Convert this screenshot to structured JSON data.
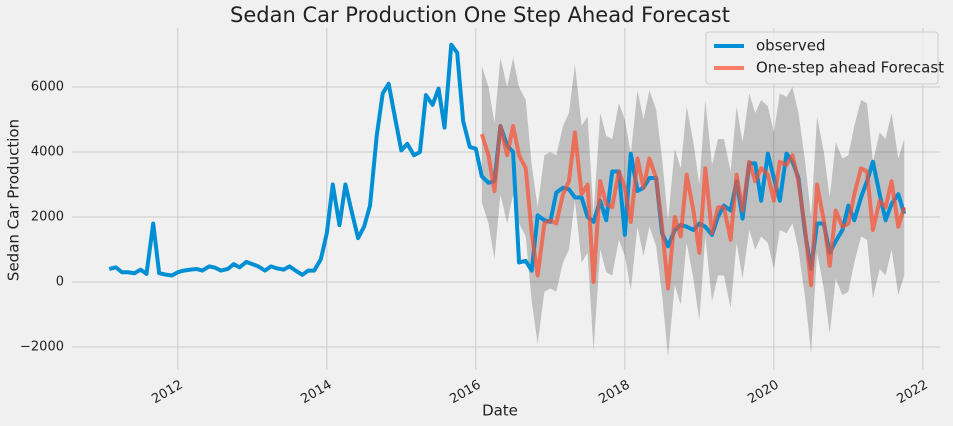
{
  "chart_data": {
    "type": "line",
    "title": "Sedan Car Production One Step Ahead Forecast",
    "x_label": "Date",
    "y_label": "Sedan Car Production",
    "xlim": [
      2010.58,
      2022.23
    ],
    "xticks": [
      2012,
      2014,
      2016,
      2018,
      2020,
      2022
    ],
    "ylim": [
      -2708,
      7815
    ],
    "yticks": [
      {
        "value": -2000,
        "label": "−2000"
      },
      0,
      2000,
      4000,
      6000
    ],
    "grid": true,
    "legend": "upper right",
    "band_color": "#000000",
    "series": [
      {
        "name": "observed",
        "color": "#008fd5",
        "x": [
          2011.08,
          2011.17,
          2011.25,
          2011.33,
          2011.42,
          2011.5,
          2011.58,
          2011.67,
          2011.75,
          2011.83,
          2011.92,
          2012.0,
          2012.08,
          2012.17,
          2012.25,
          2012.33,
          2012.42,
          2012.5,
          2012.58,
          2012.67,
          2012.75,
          2012.83,
          2012.92,
          2013.0,
          2013.08,
          2013.17,
          2013.25,
          2013.33,
          2013.42,
          2013.5,
          2013.58,
          2013.67,
          2013.75,
          2013.83,
          2013.92,
          2014.0,
          2014.08,
          2014.17,
          2014.25,
          2014.33,
          2014.42,
          2014.5,
          2014.58,
          2014.67,
          2014.75,
          2014.83,
          2014.92,
          2015.0,
          2015.08,
          2015.17,
          2015.25,
          2015.33,
          2015.42,
          2015.5,
          2015.58,
          2015.67,
          2015.75,
          2015.83,
          2015.92,
          2016.0,
          2016.08,
          2016.17,
          2016.25,
          2016.33,
          2016.42,
          2016.5,
          2016.58,
          2016.67,
          2016.75,
          2016.83,
          2016.92,
          2017.0,
          2017.08,
          2017.17,
          2017.25,
          2017.33,
          2017.42,
          2017.5,
          2017.58,
          2017.67,
          2017.75,
          2017.83,
          2017.92,
          2018.0,
          2018.08,
          2018.17,
          2018.25,
          2018.33,
          2018.42,
          2018.5,
          2018.58,
          2018.67,
          2018.75,
          2018.83,
          2018.92,
          2019.0,
          2019.08,
          2019.17,
          2019.25,
          2019.33,
          2019.42,
          2019.5,
          2019.58,
          2019.67,
          2019.75,
          2019.83,
          2019.92,
          2020.0,
          2020.08,
          2020.17,
          2020.25,
          2020.33,
          2020.42,
          2020.5,
          2020.58,
          2020.67,
          2020.75,
          2020.83,
          2020.92,
          2021.0,
          2021.08,
          2021.17,
          2021.25,
          2021.33,
          2021.42,
          2021.5,
          2021.58,
          2021.67,
          2021.75
        ],
        "values": [
          400,
          450,
          300,
          300,
          270,
          380,
          250,
          1800,
          270,
          230,
          200,
          300,
          350,
          380,
          400,
          350,
          480,
          440,
          350,
          400,
          550,
          450,
          620,
          550,
          480,
          350,
          480,
          420,
          380,
          480,
          350,
          220,
          350,
          350,
          700,
          1500,
          3000,
          1750,
          3000,
          2200,
          1350,
          1700,
          2350,
          4500,
          5800,
          6100,
          5000,
          4050,
          4250,
          3900,
          4000,
          5750,
          5450,
          5950,
          4750,
          7300,
          7050,
          4950,
          4150,
          4100,
          3250,
          3050,
          3100,
          4800,
          4200,
          4000,
          600,
          650,
          350,
          2050,
          1900,
          1850,
          2750,
          2900,
          2850,
          2600,
          2600,
          2000,
          1850,
          2500,
          1900,
          3400,
          3400,
          1450,
          3950,
          2800,
          2900,
          3200,
          3200,
          1500,
          1100,
          1600,
          1750,
          1700,
          1600,
          1800,
          1700,
          1450,
          2000,
          2350,
          2200,
          3100,
          1950,
          3650,
          3650,
          2500,
          3950,
          3200,
          2500,
          3950,
          3700,
          3200,
          1500,
          400,
          1800,
          1800,
          900,
          1250,
          1600,
          2350,
          1900,
          2600,
          3100,
          3700,
          2700,
          1900,
          2400,
          2700,
          2100
        ]
      },
      {
        "name": "One-step ahead Forecast",
        "color": "#fc4f30",
        "x": [
          2016.08,
          2016.17,
          2016.25,
          2016.33,
          2016.42,
          2016.5,
          2016.58,
          2016.67,
          2016.75,
          2016.83,
          2016.92,
          2017.0,
          2017.08,
          2017.17,
          2017.25,
          2017.33,
          2017.42,
          2017.5,
          2017.58,
          2017.67,
          2017.75,
          2017.83,
          2017.92,
          2018.0,
          2018.08,
          2018.17,
          2018.25,
          2018.33,
          2018.42,
          2018.5,
          2018.58,
          2018.67,
          2018.75,
          2018.83,
          2018.92,
          2019.0,
          2019.08,
          2019.17,
          2019.25,
          2019.33,
          2019.42,
          2019.5,
          2019.58,
          2019.67,
          2019.75,
          2019.83,
          2019.92,
          2020.0,
          2020.08,
          2020.17,
          2020.25,
          2020.33,
          2020.42,
          2020.5,
          2020.58,
          2020.67,
          2020.75,
          2020.83,
          2020.92,
          2021.0,
          2021.08,
          2021.17,
          2021.25,
          2021.33,
          2021.42,
          2021.5,
          2021.58,
          2021.67,
          2021.75
        ],
        "values": [
          4550,
          3900,
          2800,
          4800,
          3900,
          4800,
          3900,
          3500,
          1500,
          200,
          1800,
          1900,
          1800,
          2700,
          3100,
          4600,
          2700,
          3000,
          0,
          3100,
          2400,
          2300,
          3400,
          2900,
          1850,
          3800,
          2900,
          3800,
          3200,
          1700,
          -200,
          2000,
          1400,
          3300,
          2200,
          900,
          3500,
          1500,
          2300,
          2300,
          1300,
          3300,
          2200,
          3700,
          3100,
          3500,
          3300,
          2500,
          3700,
          3600,
          3900,
          3100,
          1600,
          -100,
          3000,
          1900,
          500,
          2200,
          1700,
          1800,
          2700,
          3500,
          3400,
          1600,
          2500,
          2300,
          3100,
          1700,
          2300
        ],
        "lower": [
          2450,
          1800,
          700,
          2700,
          1800,
          2700,
          1800,
          1400,
          -600,
          -1900,
          -300,
          -200,
          -300,
          600,
          1000,
          2500,
          600,
          900,
          -2100,
          1000,
          300,
          200,
          1300,
          800,
          -250,
          1700,
          800,
          1700,
          1100,
          -400,
          -2300,
          -100,
          -700,
          1200,
          100,
          -1200,
          1400,
          -600,
          200,
          200,
          -800,
          1200,
          100,
          1600,
          1000,
          1400,
          1200,
          400,
          1600,
          1500,
          1800,
          1000,
          -500,
          -2200,
          900,
          -200,
          -1600,
          100,
          -400,
          -300,
          600,
          1400,
          1300,
          -500,
          400,
          200,
          1000,
          -400,
          200
        ],
        "upper": [
          6650,
          6000,
          4900,
          6900,
          6000,
          6900,
          6000,
          5600,
          3600,
          2300,
          3900,
          4000,
          3900,
          4800,
          5200,
          6700,
          4800,
          5100,
          2100,
          5200,
          4500,
          4400,
          5500,
          5000,
          3950,
          5900,
          5000,
          5900,
          5300,
          3800,
          1900,
          4100,
          3500,
          5400,
          4300,
          3000,
          5600,
          3600,
          4400,
          4400,
          3400,
          5400,
          4300,
          5800,
          5200,
          5600,
          5400,
          4600,
          5800,
          5700,
          6000,
          5200,
          3700,
          2000,
          5100,
          4000,
          2600,
          4300,
          3800,
          3900,
          4800,
          5600,
          5500,
          3700,
          4600,
          4400,
          5200,
          3800,
          4400
        ]
      }
    ]
  }
}
